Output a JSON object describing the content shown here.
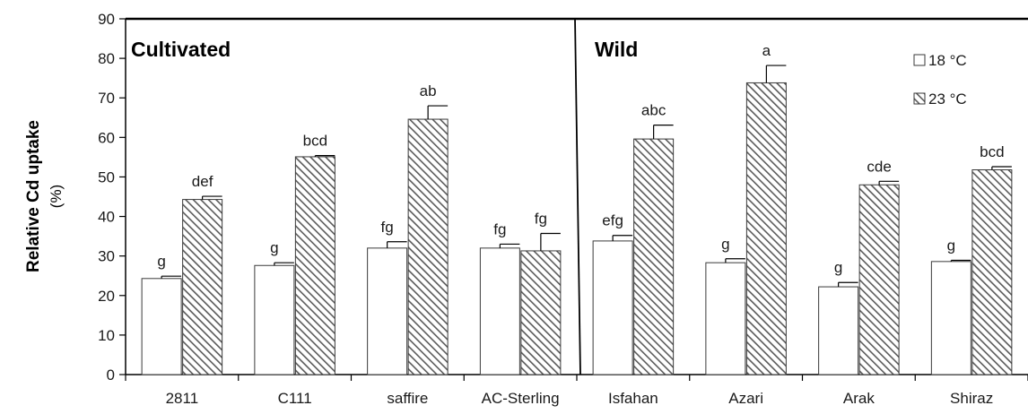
{
  "chart_data": {
    "type": "bar",
    "ylabel": "Relative Cd uptake",
    "ylabel_unit": "(%)",
    "ylim": [
      0,
      90
    ],
    "yticks": [
      0,
      10,
      20,
      30,
      40,
      50,
      60,
      70,
      80,
      90
    ],
    "categories": [
      "2811",
      "C111",
      "saffire",
      "AC-Sterling",
      "Isfahan",
      "Azari",
      "Arak",
      "Shiraz"
    ],
    "groups": [
      {
        "label": "Cultivated",
        "categories": [
          "2811",
          "C111",
          "saffire",
          "AC-Sterling"
        ]
      },
      {
        "label": "Wild",
        "categories": [
          "Isfahan",
          "Azari",
          "Arak",
          "Shiraz"
        ]
      }
    ],
    "series": [
      {
        "name": "18 °C",
        "fill": "white",
        "values": [
          24.3,
          27.6,
          32.0,
          32.0,
          33.8,
          28.3,
          22.2,
          28.6
        ],
        "errors": [
          0.6,
          0.7,
          1.6,
          1.0,
          1.4,
          1.0,
          1.1,
          0.3
        ],
        "labels": [
          "g",
          "g",
          "fg",
          "fg",
          "efg",
          "g",
          "g",
          "g"
        ]
      },
      {
        "name": "23 °C",
        "fill": "hatched",
        "values": [
          44.3,
          55.1,
          64.6,
          31.3,
          59.6,
          73.8,
          48.0,
          51.8
        ],
        "errors": [
          0.8,
          0.3,
          3.4,
          4.4,
          3.5,
          4.4,
          0.9,
          0.8
        ],
        "labels": [
          "def",
          "bcd",
          "ab",
          "fg",
          "abc",
          "a",
          "cde",
          "bcd"
        ]
      }
    ],
    "legend_position": "top-right",
    "grid": false
  },
  "colors": {
    "bar_stroke": "#3a3a3a",
    "hatch": "#5a5a5a",
    "axis": "#000000"
  }
}
